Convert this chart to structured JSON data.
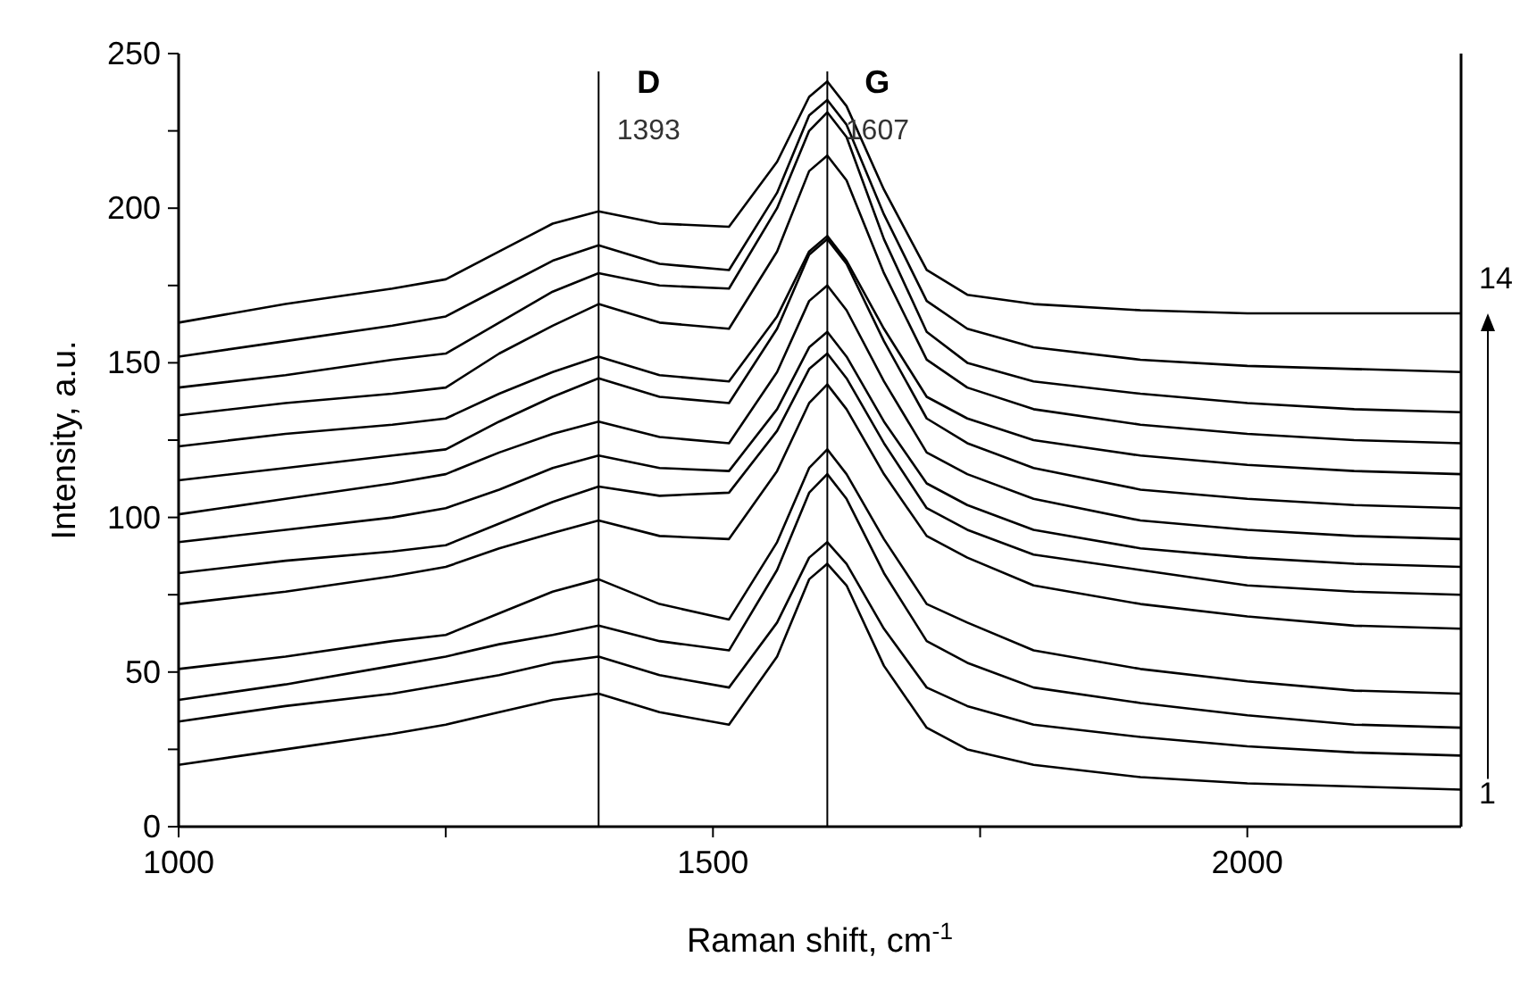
{
  "chart_data": {
    "type": "line",
    "xlabel": "Raman shift, cm$^{-1}$",
    "ylabel": "Intensity, a.u.",
    "xlim": [
      1000,
      2200
    ],
    "ylim": [
      0,
      250
    ],
    "xticks": [
      1000,
      {
        "value": 1250,
        "label": null
      },
      1500,
      {
        "value": 1750,
        "label": null
      },
      2000
    ],
    "yticks": [
      0,
      {
        "value": 25,
        "label": null
      },
      50,
      {
        "value": 75,
        "label": null
      },
      100,
      {
        "value": 125,
        "label": null
      },
      150,
      {
        "value": 175,
        "label": null
      },
      200,
      {
        "value": 225,
        "label": null
      },
      250
    ],
    "x": [
      1000,
      1100,
      1200,
      1250,
      1300,
      1350,
      1393,
      1450,
      1515,
      1560,
      1590,
      1607,
      1625,
      1660,
      1700,
      1738,
      1800,
      1900,
      2000,
      2100,
      2200
    ],
    "series": [
      {
        "name": "1",
        "color": "#000000",
        "values": [
          20,
          25,
          30,
          33,
          37,
          41,
          43,
          37,
          33,
          55,
          80,
          85,
          78,
          52,
          32,
          25,
          20,
          16,
          14,
          13,
          12
        ]
      },
      {
        "color": "#000000",
        "values": [
          34,
          39,
          43,
          46,
          49,
          53,
          55,
          49,
          45,
          66,
          87,
          92,
          85,
          64,
          45,
          39,
          33,
          29,
          26,
          24,
          23
        ]
      },
      {
        "color": "#000000",
        "values": [
          41,
          46,
          52,
          55,
          59,
          62,
          65,
          60,
          57,
          83,
          108,
          114,
          106,
          82,
          60,
          53,
          45,
          40,
          36,
          33,
          32
        ]
      },
      {
        "color": "#000000",
        "values": [
          51,
          55,
          60,
          62,
          69,
          76,
          80,
          72,
          67,
          92,
          116,
          122,
          114,
          93,
          72,
          66,
          57,
          51,
          47,
          44,
          43
        ]
      },
      {
        "color": "#000000",
        "values": [
          72,
          76,
          81,
          84,
          90,
          95,
          99,
          94,
          93,
          115,
          137,
          143,
          135,
          114,
          94,
          87,
          78,
          72,
          68,
          65,
          64
        ]
      },
      {
        "color": "#000000",
        "values": [
          82,
          86,
          89,
          91,
          98,
          105,
          110,
          107,
          108,
          128,
          148,
          153,
          145,
          124,
          103,
          96,
          88,
          83,
          78,
          76,
          75
        ]
      },
      {
        "color": "#000000",
        "values": [
          92,
          96,
          100,
          103,
          109,
          116,
          120,
          116,
          115,
          135,
          155,
          160,
          152,
          131,
          111,
          104,
          96,
          90,
          87,
          85,
          84
        ]
      },
      {
        "color": "#000000",
        "values": [
          101,
          106,
          111,
          114,
          121,
          127,
          131,
          126,
          124,
          147,
          170,
          175,
          167,
          144,
          121,
          114,
          106,
          99,
          96,
          94,
          93
        ]
      },
      {
        "color": "#000000",
        "values": [
          112,
          116,
          120,
          122,
          131,
          139,
          145,
          139,
          137,
          161,
          185,
          190,
          182,
          157,
          132,
          124,
          116,
          109,
          106,
          104,
          103
        ]
      },
      {
        "color": "#000000",
        "values": [
          123,
          127,
          130,
          132,
          140,
          147,
          152,
          146,
          144,
          165,
          186,
          191,
          183,
          161,
          139,
          132,
          125,
          120,
          117,
          115,
          114
        ]
      },
      {
        "color": "#000000",
        "values": [
          133,
          137,
          140,
          142,
          153,
          162,
          169,
          163,
          161,
          186,
          212,
          217,
          209,
          179,
          151,
          142,
          135,
          130,
          127,
          125,
          124
        ]
      },
      {
        "color": "#000000",
        "values": [
          142,
          146,
          151,
          153,
          163,
          173,
          179,
          175,
          174,
          200,
          225,
          231,
          223,
          190,
          160,
          150,
          144,
          140,
          137,
          135,
          134
        ]
      },
      {
        "color": "#000000",
        "values": [
          152,
          157,
          162,
          165,
          174,
          183,
          188,
          182,
          180,
          205,
          230,
          235,
          227,
          198,
          170,
          161,
          155,
          151,
          149,
          148,
          147
        ]
      },
      {
        "name": "14",
        "color": "#000000",
        "values": [
          163,
          169,
          174,
          177,
          186,
          195,
          199,
          195,
          194,
          215,
          236,
          241,
          233,
          206,
          180,
          172,
          169,
          167,
          166,
          166,
          166
        ]
      }
    ],
    "ref_lines": [
      {
        "axis": "x",
        "value": 1393,
        "label": "D",
        "color": "#000000"
      },
      {
        "axis": "x",
        "value": 1607,
        "label": "G",
        "color": "#000000"
      }
    ],
    "annotations": [
      "1393",
      "1607"
    ],
    "marker": "none",
    "line_style": "solid",
    "grid": false
  }
}
